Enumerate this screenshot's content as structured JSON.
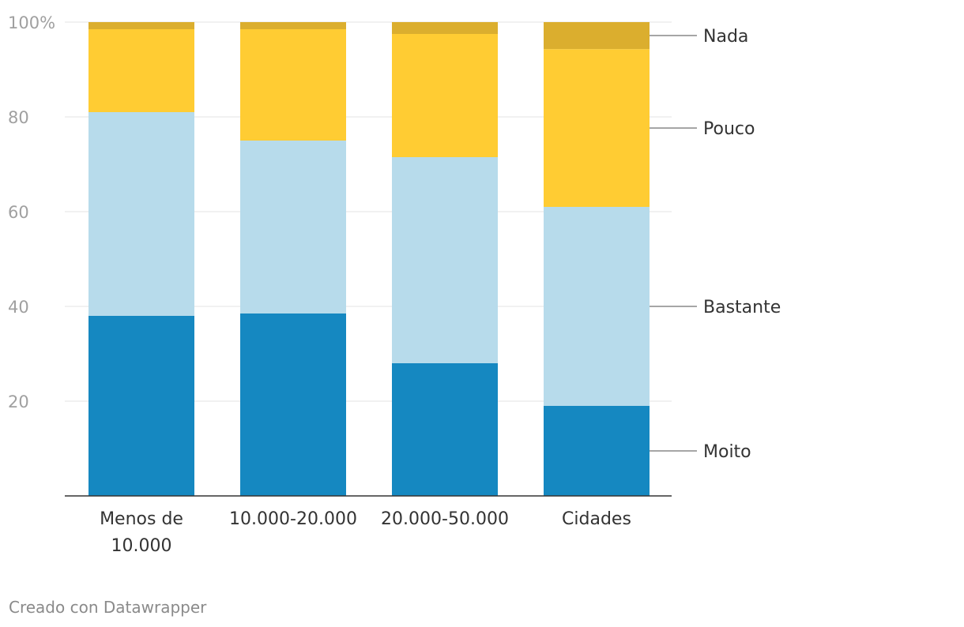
{
  "chart_data": {
    "type": "bar",
    "stacked": true,
    "categories": [
      [
        "Menos de",
        "10.000"
      ],
      [
        "10.000-20.000"
      ],
      [
        "20.000-50.000"
      ],
      [
        "Cidades"
      ]
    ],
    "series": [
      {
        "name": "Moito",
        "color": "#1588c1",
        "values": [
          38,
          38.5,
          28,
          19
        ]
      },
      {
        "name": "Bastante",
        "color": "#b7dbeb",
        "values": [
          43,
          36.5,
          43.5,
          42
        ]
      },
      {
        "name": "Pouco",
        "color": "#ffcc33",
        "values": [
          17.5,
          23.5,
          26,
          33.3
        ]
      },
      {
        "name": "Nada",
        "color": "#dbae2e",
        "values": [
          1.5,
          1.5,
          2.5,
          5.7
        ]
      }
    ],
    "yticks": [
      {
        "value": 20,
        "label": "20"
      },
      {
        "value": 40,
        "label": "40"
      },
      {
        "value": 60,
        "label": "60"
      },
      {
        "value": 80,
        "label": "80"
      },
      {
        "value": 100,
        "label": "100%"
      }
    ],
    "ylim": [
      0,
      100
    ],
    "grid": true,
    "legend_position": "right (direct labels)"
  },
  "footer": {
    "credit": "Creado con Datawrapper"
  }
}
